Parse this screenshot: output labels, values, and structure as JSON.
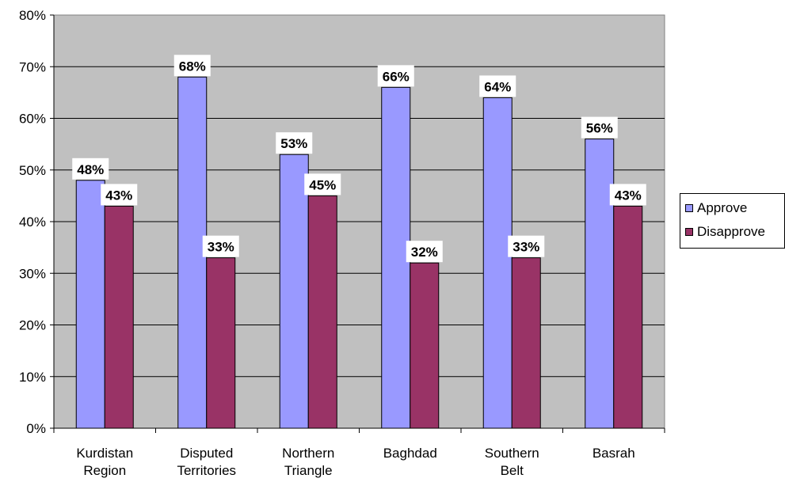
{
  "chart_data": {
    "type": "bar",
    "categories": [
      [
        "Kurdistan",
        "Region"
      ],
      [
        "Disputed",
        "Territories"
      ],
      [
        "Northern",
        "Triangle"
      ],
      [
        "Baghdad"
      ],
      [
        "Southern",
        "Belt"
      ],
      [
        "Basrah"
      ]
    ],
    "series": [
      {
        "name": "Approve",
        "color": "#9999ff",
        "values": [
          48,
          68,
          53,
          66,
          64,
          56
        ],
        "labels": [
          "48%",
          "68%",
          "53%",
          "66%",
          "64%",
          "56%"
        ]
      },
      {
        "name": "Disapprove",
        "color": "#993366",
        "values": [
          43,
          33,
          45,
          32,
          33,
          43
        ],
        "labels": [
          "43%",
          "33%",
          "45%",
          "32%",
          "33%",
          "43%"
        ]
      }
    ],
    "ylim": [
      0,
      80
    ],
    "yticks": [
      "0%",
      "10%",
      "20%",
      "30%",
      "40%",
      "50%",
      "60%",
      "70%",
      "80%"
    ],
    "plot_background": "#c0c0c0",
    "grid": true,
    "legend_position": "right"
  }
}
